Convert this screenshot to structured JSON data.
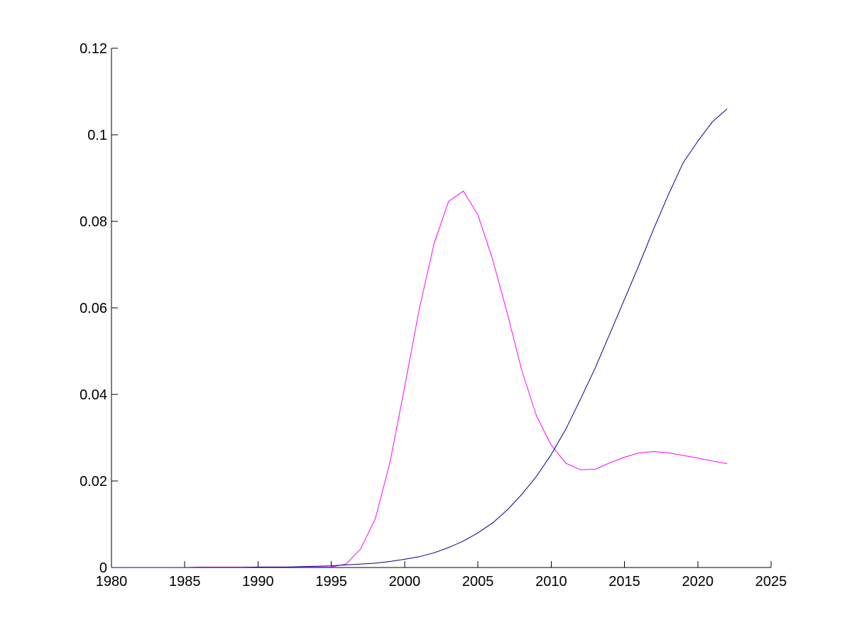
{
  "chart_data": {
    "type": "line",
    "x": [
      1980,
      1981,
      1982,
      1983,
      1984,
      1985,
      1986,
      1987,
      1988,
      1989,
      1990,
      1991,
      1992,
      1993,
      1994,
      1995,
      1996,
      1997,
      1998,
      1999,
      2000,
      2001,
      2002,
      2003,
      2004,
      2005,
      2006,
      2007,
      2008,
      2009,
      2010,
      2011,
      2012,
      2013,
      2014,
      2015,
      2016,
      2017,
      2018,
      2019,
      2020,
      2021,
      2022
    ],
    "series": [
      {
        "color": "#ff00ff",
        "values": [
          0,
          0,
          0,
          0,
          0,
          0,
          0.0001,
          0.0001,
          0.0001,
          0.0001,
          0.0001,
          0.0001,
          0.0001,
          0.0001,
          0.0001,
          0.0001,
          0.0008,
          0.0043,
          0.0113,
          0.0243,
          0.0417,
          0.0597,
          0.0748,
          0.0846,
          0.087,
          0.0815,
          0.0712,
          0.0588,
          0.0455,
          0.035,
          0.0283,
          0.0241,
          0.0226,
          0.0227,
          0.0242,
          0.0255,
          0.0265,
          0.0268,
          0.0265,
          0.0259,
          0.0253,
          0.0246,
          0.024
        ]
      },
      {
        "color": "#00008b",
        "values": [
          0,
          0,
          0,
          0,
          0,
          0,
          0,
          0,
          0,
          0,
          0.0001,
          0.0001,
          0.0001,
          0.0002,
          0.0003,
          0.0004,
          0.0006,
          0.0008,
          0.001,
          0.0014,
          0.0019,
          0.0025,
          0.0034,
          0.0046,
          0.0061,
          0.008,
          0.0103,
          0.0133,
          0.0169,
          0.0211,
          0.0261,
          0.032,
          0.0389,
          0.0461,
          0.054,
          0.062,
          0.07,
          0.0783,
          0.0862,
          0.0935,
          0.0985,
          0.103,
          0.106
        ]
      }
    ],
    "title": "",
    "xlabel": "",
    "ylabel": "",
    "xlim": [
      1980,
      2025
    ],
    "ylim": [
      0,
      0.12
    ],
    "x_ticks": [
      "1980",
      "1985",
      "1990",
      "1995",
      "2000",
      "2005",
      "2010",
      "2015",
      "2020",
      "2025"
    ],
    "y_ticks": [
      "0",
      "0.02",
      "0.04",
      "0.06",
      "0.08",
      "0.1",
      "0.12"
    ],
    "grid": false,
    "legend": "none"
  }
}
